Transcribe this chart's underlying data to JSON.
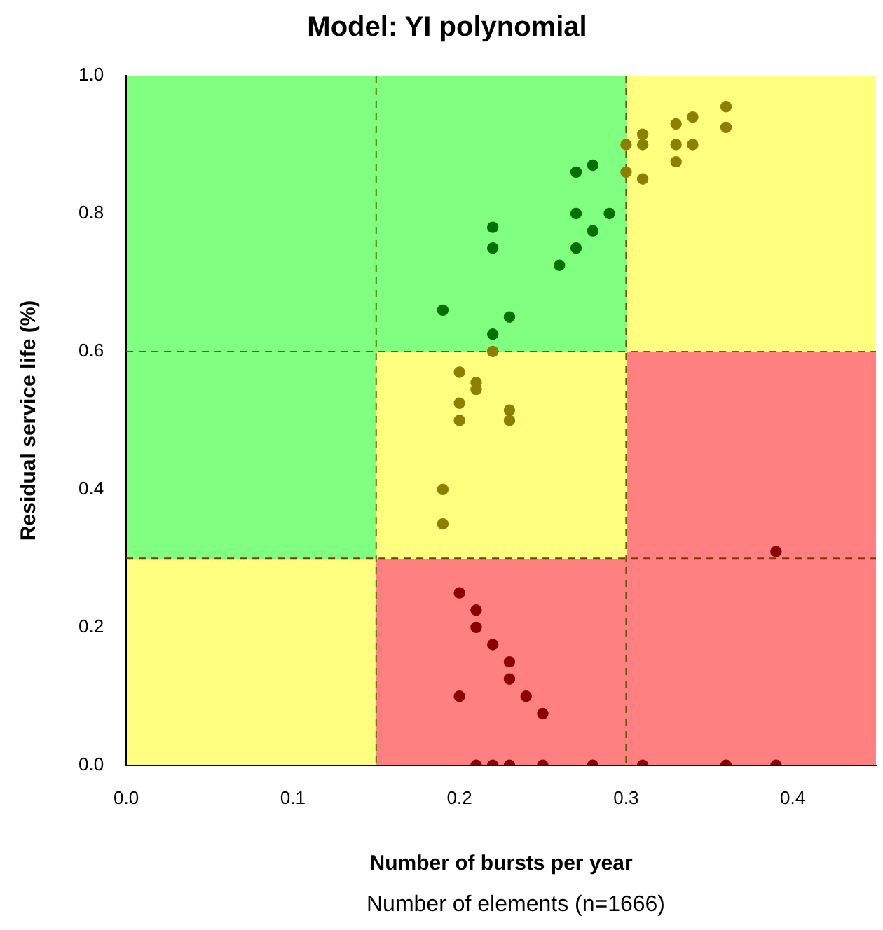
{
  "chart_data": {
    "type": "scatter",
    "title": "Model: YI polynomial",
    "xlabel": "Number of bursts per year",
    "ylabel": "Residual service life (%)",
    "annotations": [
      "Number of elements (n=1666)"
    ],
    "series": [
      {
        "color": "#007000",
        "x": [
          0.19,
          0.22,
          0.22,
          0.23,
          0.22,
          0.26,
          0.27,
          0.27,
          0.27,
          0.28,
          0.28,
          0.29
        ],
        "values": [
          0.66,
          0.78,
          0.75,
          0.65,
          0.625,
          0.725,
          0.75,
          0.8,
          0.86,
          0.87,
          0.775,
          0.8
        ]
      },
      {
        "color": "#8b8000",
        "x": [
          0.3,
          0.3,
          0.31,
          0.31,
          0.31,
          0.33,
          0.33,
          0.33,
          0.34,
          0.34,
          0.36,
          0.36,
          0.22,
          0.2,
          0.21,
          0.21,
          0.2,
          0.2,
          0.23,
          0.23,
          0.19,
          0.19
        ],
        "values": [
          0.9,
          0.86,
          0.915,
          0.9,
          0.85,
          0.93,
          0.9,
          0.875,
          0.94,
          0.9,
          0.955,
          0.925,
          0.6,
          0.57,
          0.555,
          0.545,
          0.525,
          0.5,
          0.515,
          0.5,
          0.4,
          0.35
        ]
      },
      {
        "color": "#8b0000",
        "x": [
          0.39,
          0.2,
          0.21,
          0.21,
          0.22,
          0.23,
          0.23,
          0.2,
          0.24,
          0.25,
          0.21,
          0.22,
          0.23,
          0.25,
          0.28,
          0.31,
          0.36,
          0.39
        ],
        "values": [
          0.31,
          0.25,
          0.225,
          0.2,
          0.175,
          0.15,
          0.125,
          0.1,
          0.1,
          0.075,
          0,
          0,
          0,
          0,
          0,
          0,
          0,
          0
        ]
      }
    ],
    "xlim": [
      0,
      0.45
    ],
    "xticks": [
      {
        "value": 0,
        "label": "0.0"
      },
      0.1,
      0.2,
      0.3,
      0.4
    ],
    "ylim": [
      0,
      1
    ],
    "yticks": [
      {
        "value": 0,
        "label": "0.0"
      },
      0.2,
      0.4,
      0.6,
      0.8,
      {
        "value": 1,
        "label": "1.0"
      }
    ],
    "ref_lines": [
      {
        "axis": "x",
        "value": 0.15,
        "color": "#4a7a00",
        "line_style": "dashed"
      },
      {
        "axis": "x",
        "value": 0.3,
        "color": "#6b5a00",
        "line_style": "dashed"
      },
      {
        "axis": "y",
        "value": 0.3,
        "color": "#7a3a00",
        "line_style": "dashed"
      },
      {
        "axis": "y",
        "value": 0.6,
        "color": "#5a6a00",
        "line_style": "dashed"
      }
    ],
    "grid": false,
    "legend": false,
    "marker": "circle"
  }
}
